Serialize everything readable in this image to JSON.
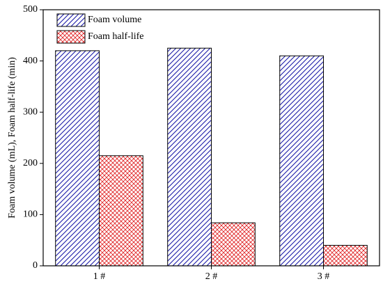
{
  "chart_data": {
    "type": "bar",
    "y_label": "Foam volume (mL), Foam half-life (min)",
    "categories": [
      "1 #",
      "2 #",
      "3 #"
    ],
    "series": [
      {
        "name": "Foam volume",
        "color": "#1a1aa8",
        "values": [
          420,
          425,
          410
        ]
      },
      {
        "name": "Foam half-life",
        "color": "#e0282a",
        "values": [
          215,
          84,
          40
        ]
      }
    ],
    "ylim": [
      0,
      500
    ],
    "yticks": [
      0,
      100,
      200,
      300,
      400,
      500
    ],
    "legend": "upper left"
  }
}
